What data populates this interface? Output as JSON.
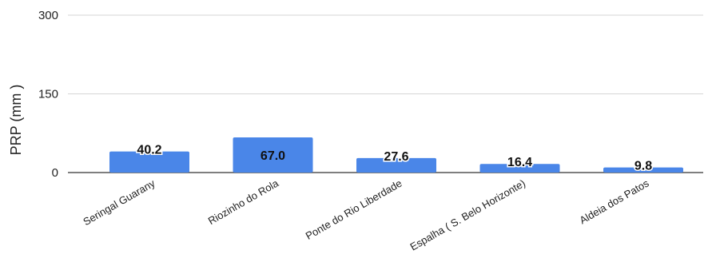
{
  "chart_data": {
    "type": "bar",
    "title": "",
    "xlabel": "",
    "ylabel": "PRP (mm )",
    "ylim": [
      0,
      300
    ],
    "yticks": [
      0,
      150,
      300
    ],
    "grid": true,
    "legend": "none",
    "bar_color": "#4a86e8",
    "categories": [
      "Seringal Guarany",
      "Riozinho do Rola",
      "Ponte do Rio Liberdade",
      "Espalha ( S. Belo Horizonte)",
      "Aldeia dos Patos"
    ],
    "values": [
      40.2,
      67.0,
      27.6,
      16.4,
      9.8
    ],
    "value_labels": [
      "40.2",
      "67.0",
      "27.6",
      "16.4",
      "9.8"
    ]
  }
}
